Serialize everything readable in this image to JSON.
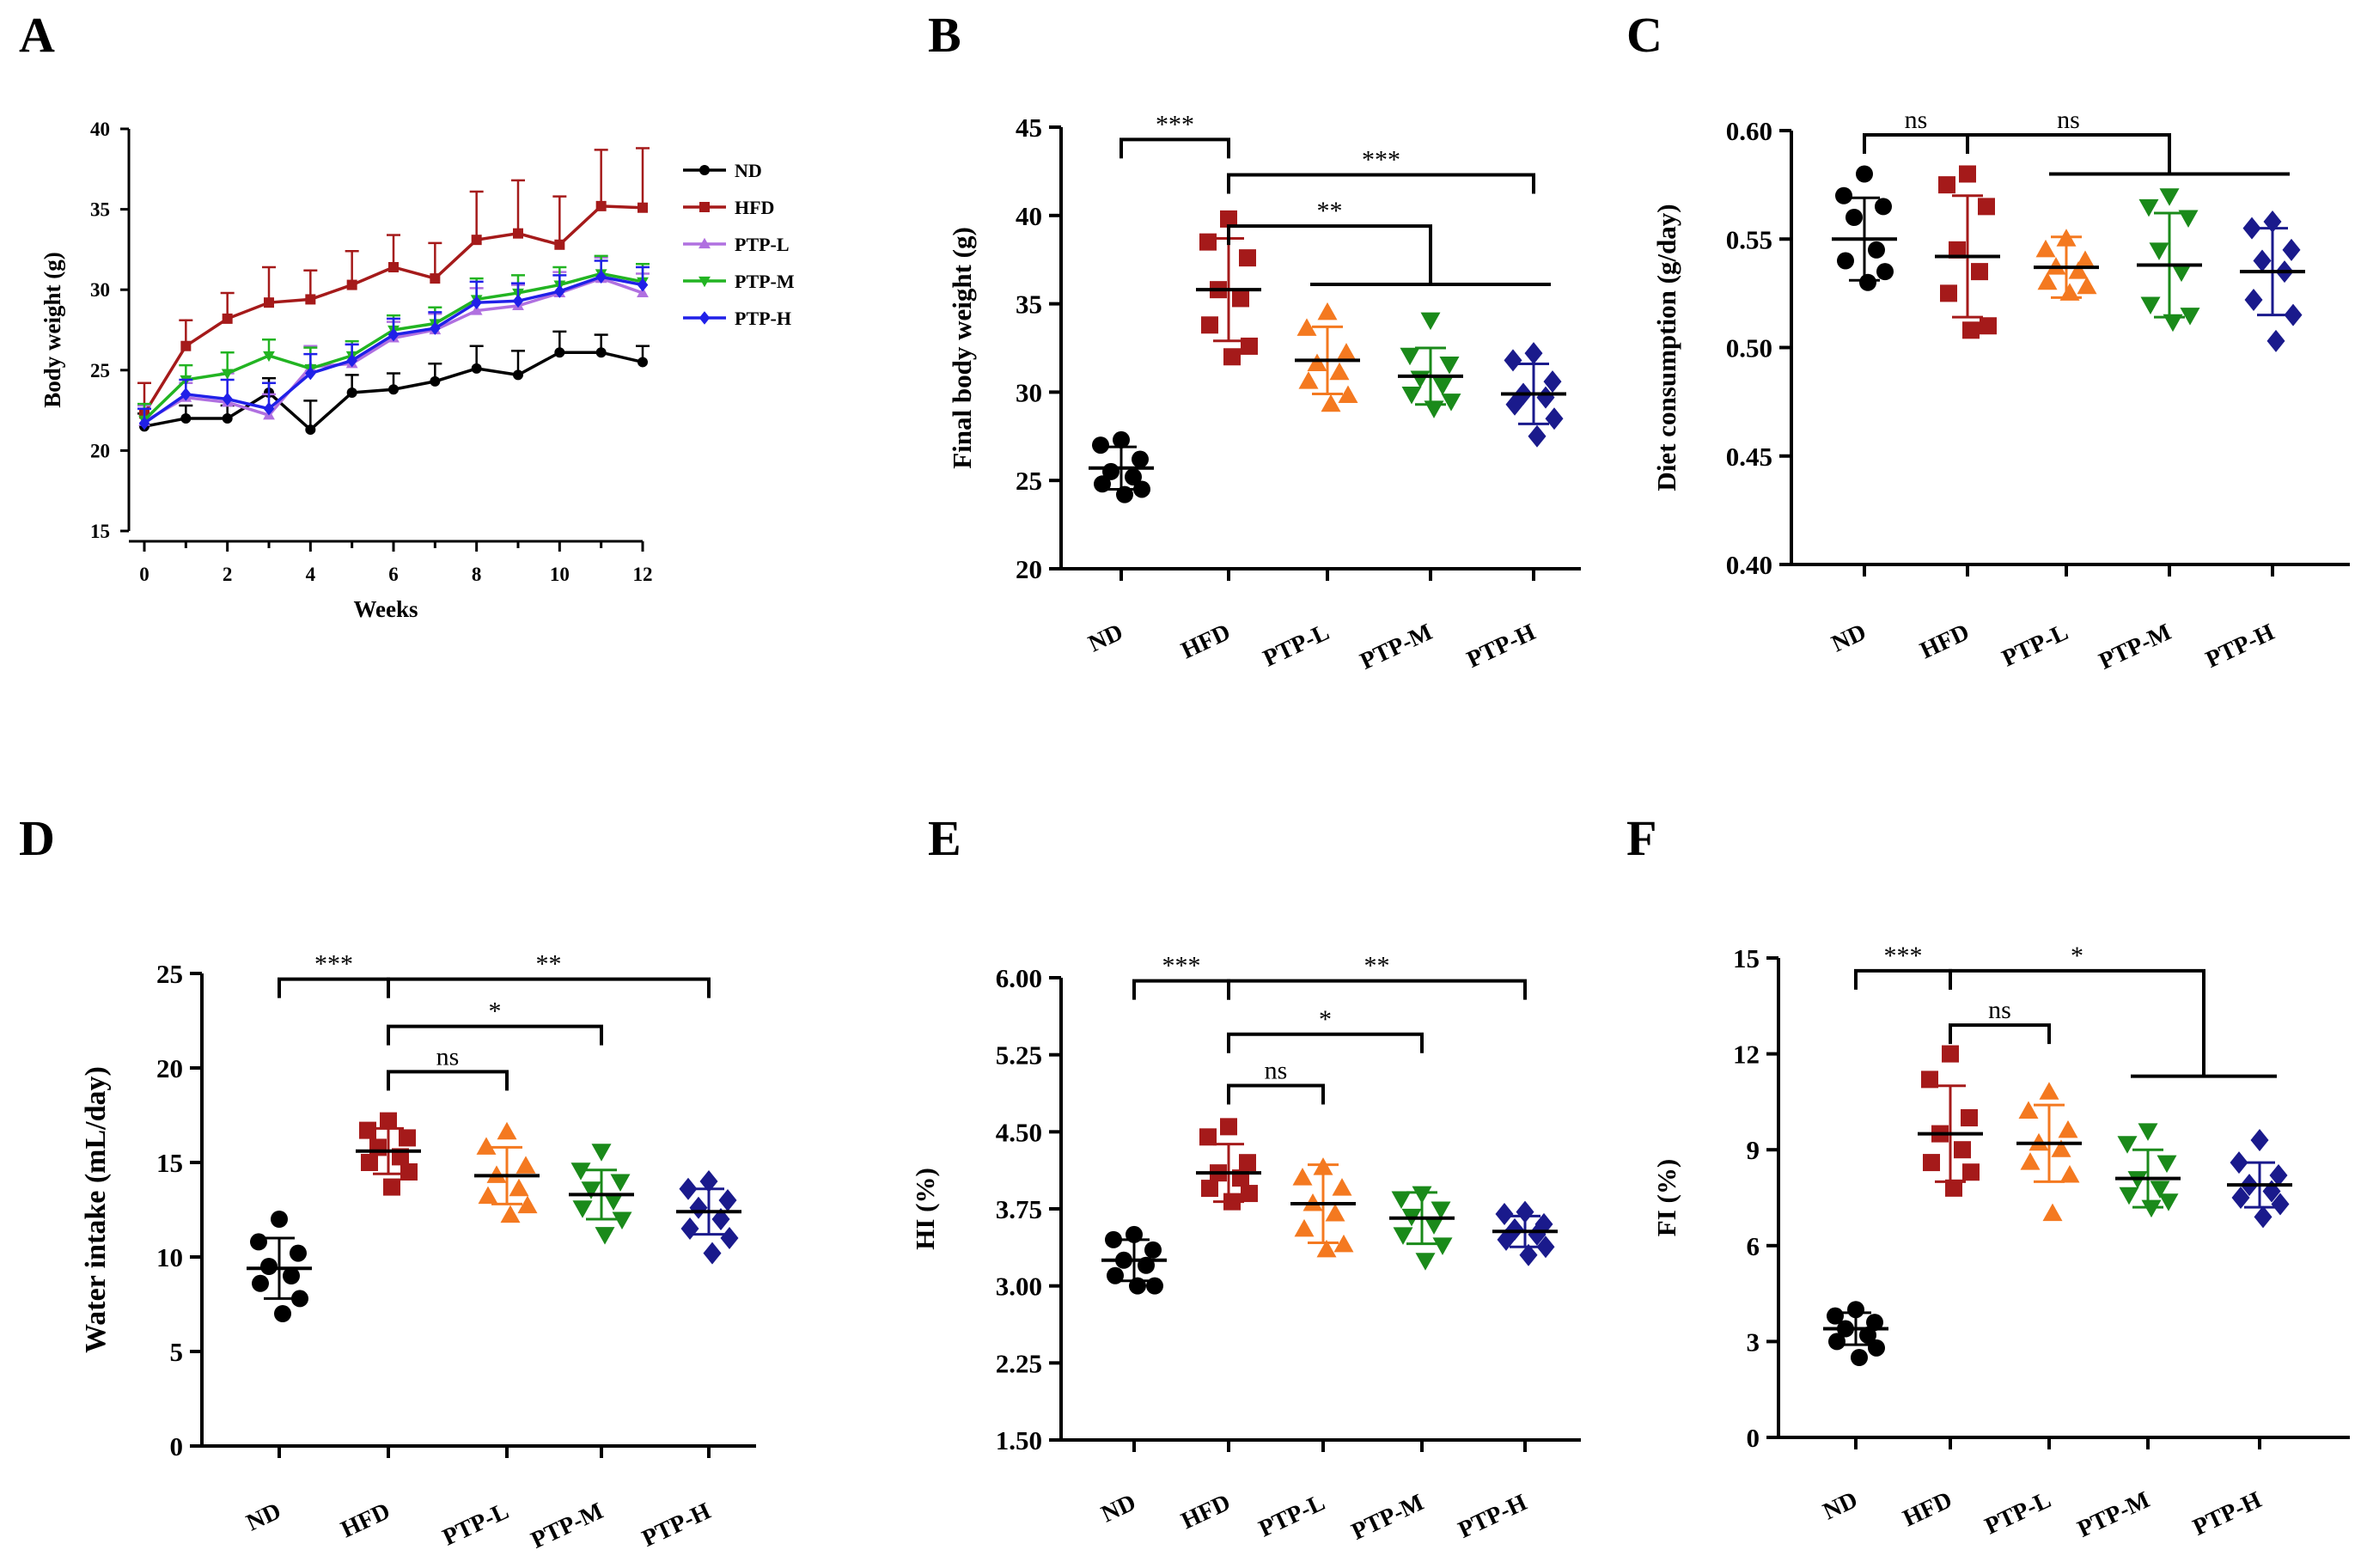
{
  "figure": {
    "colors": {
      "ND": "#000000",
      "HFD": "#A51A1A",
      "PTP-L": "#F47920",
      "PTP-M": "#1A8A1A",
      "PTP-H": "#1A1A8C",
      "PTP-L-line": "#B070E0",
      "PTP-M-line": "#22B422",
      "PTP-H-line": "#2020E8"
    }
  },
  "chart_data": [
    {
      "panel": "A",
      "type": "line",
      "xlabel": "Weeks",
      "ylabel": "Body weight (g)",
      "xlim": [
        0,
        12
      ],
      "ylim": [
        15,
        40
      ],
      "xticks": [
        "0",
        "2",
        "4",
        "6",
        "8",
        "10",
        "12"
      ],
      "yticks": [
        "15",
        "20",
        "25",
        "30",
        "35",
        "40"
      ],
      "x": [
        0,
        1,
        2,
        3,
        4,
        5,
        6,
        7,
        8,
        9,
        10,
        11,
        12
      ],
      "legend": [
        "ND",
        "HFD",
        "PTP-L",
        "PTP-M",
        "PTP-H"
      ],
      "series": [
        {
          "name": "ND",
          "values": [
            21.5,
            22.0,
            22.0,
            23.6,
            21.3,
            23.6,
            23.8,
            24.3,
            25.1,
            24.7,
            26.1,
            26.1,
            25.5
          ],
          "err": [
            0.8,
            0.8,
            0.8,
            0.9,
            1.8,
            1.1,
            1.0,
            1.1,
            1.4,
            1.5,
            1.3,
            1.1,
            1.0
          ]
        },
        {
          "name": "HFD",
          "values": [
            22.3,
            26.5,
            28.2,
            29.2,
            29.4,
            30.3,
            31.4,
            30.7,
            33.1,
            33.5,
            32.8,
            35.2,
            35.1
          ],
          "err": [
            1.9,
            1.6,
            1.6,
            2.2,
            1.8,
            2.1,
            2.0,
            2.2,
            3.0,
            3.3,
            3.0,
            3.5,
            3.7
          ]
        },
        {
          "name": "PTP-L",
          "values": [
            21.8,
            23.3,
            23.0,
            22.2,
            25.2,
            25.4,
            27.0,
            27.5,
            28.7,
            29.0,
            29.8,
            30.7,
            29.8
          ],
          "err": [
            1.0,
            0.9,
            1.8,
            1.3,
            1.3,
            1.2,
            1.0,
            1.0,
            1.4,
            1.3,
            1.3,
            1.3,
            1.2
          ]
        },
        {
          "name": "PTP-M",
          "values": [
            21.9,
            24.4,
            24.8,
            25.9,
            25.1,
            25.9,
            27.5,
            27.9,
            29.4,
            29.8,
            30.3,
            31.0,
            30.5
          ],
          "err": [
            1.0,
            0.9,
            1.3,
            1.0,
            1.3,
            0.9,
            0.9,
            1.0,
            1.3,
            1.1,
            1.1,
            1.1,
            1.1
          ]
        },
        {
          "name": "PTP-H",
          "values": [
            21.7,
            23.5,
            23.2,
            22.6,
            24.8,
            25.6,
            27.2,
            27.6,
            29.2,
            29.3,
            29.9,
            30.8,
            30.3
          ],
          "err": [
            0.9,
            0.9,
            1.2,
            1.6,
            1.2,
            1.0,
            1.0,
            1.0,
            1.3,
            1.1,
            1.0,
            1.0,
            1.1
          ]
        }
      ]
    },
    {
      "panel": "B",
      "type": "scatter",
      "ylabel": "Final body weight (g)",
      "ylim": [
        20,
        45
      ],
      "yticks": [
        "20",
        "25",
        "30",
        "35",
        "40",
        "45"
      ],
      "categories": [
        "ND",
        "HFD",
        "PTP-L",
        "PTP-M",
        "PTP-H"
      ],
      "groups": [
        {
          "name": "ND",
          "mean": 25.7,
          "sd": 1.2,
          "points": [
            27.3,
            27.0,
            26.2,
            25.5,
            25.2,
            24.8,
            24.5,
            24.2
          ]
        },
        {
          "name": "HFD",
          "mean": 35.8,
          "sd": 2.9,
          "points": [
            39.8,
            38.5,
            37.6,
            35.8,
            35.3,
            33.8,
            32.6,
            32.0
          ]
        },
        {
          "name": "PTP-L",
          "mean": 31.8,
          "sd": 1.9,
          "points": [
            34.5,
            33.6,
            32.2,
            31.6,
            31.1,
            30.6,
            29.8,
            29.3
          ]
        },
        {
          "name": "PTP-M",
          "mean": 30.9,
          "sd": 1.6,
          "points": [
            34.1,
            32.1,
            31.6,
            30.8,
            30.4,
            29.9,
            29.5,
            29.1
          ]
        },
        {
          "name": "PTP-H",
          "mean": 29.9,
          "sd": 1.7,
          "points": [
            32.2,
            31.8,
            30.6,
            29.9,
            29.7,
            29.3,
            28.5,
            27.5
          ]
        }
      ],
      "brackets": [
        {
          "label": "***",
          "from": "ND",
          "to": "HFD",
          "kind": "simple",
          "level": 44.3
        },
        {
          "label": "***",
          "from": "HFD",
          "to": "PTP-H",
          "kind": "simple",
          "level": 42.3
        },
        {
          "label": "**",
          "from": "HFD",
          "group": [
            "PTP-L",
            "PTP-M",
            "PTP-H"
          ],
          "kind": "tgroup",
          "level": 39.4,
          "sublevel": 36.1
        }
      ]
    },
    {
      "panel": "C",
      "type": "scatter",
      "ylabel": "Diet consumption (g/day)",
      "ylim": [
        0.4,
        0.6
      ],
      "yticks": [
        "0.40",
        "0.45",
        "0.50",
        "0.55",
        "0.60"
      ],
      "categories": [
        "ND",
        "HFD",
        "PTP-L",
        "PTP-M",
        "PTP-H"
      ],
      "groups": [
        {
          "name": "ND",
          "mean": 0.55,
          "sd": 0.019,
          "points": [
            0.58,
            0.57,
            0.565,
            0.56,
            0.545,
            0.54,
            0.535,
            0.53
          ]
        },
        {
          "name": "HFD",
          "mean": 0.542,
          "sd": 0.028,
          "points": [
            0.58,
            0.575,
            0.565,
            0.545,
            0.535,
            0.525,
            0.51,
            0.508
          ]
        },
        {
          "name": "PTP-L",
          "mean": 0.537,
          "sd": 0.014,
          "points": [
            0.55,
            0.545,
            0.54,
            0.537,
            0.535,
            0.53,
            0.528,
            0.525
          ]
        },
        {
          "name": "PTP-M",
          "mean": 0.538,
          "sd": 0.024,
          "points": [
            0.57,
            0.565,
            0.56,
            0.545,
            0.535,
            0.52,
            0.515,
            0.512
          ]
        },
        {
          "name": "PTP-H",
          "mean": 0.535,
          "sd": 0.02,
          "points": [
            0.558,
            0.555,
            0.545,
            0.54,
            0.535,
            0.522,
            0.515,
            0.503
          ]
        }
      ],
      "brackets": [
        {
          "label": "ns",
          "from": "ND",
          "to": "HFD",
          "kind": "simple",
          "level": 0.598
        },
        {
          "label": "ns",
          "from": "HFD",
          "group": [
            "PTP-L",
            "PTP-M",
            "PTP-H"
          ],
          "kind": "tgroup",
          "level": 0.598,
          "sublevel": 0.58
        }
      ]
    },
    {
      "panel": "D",
      "type": "scatter",
      "ylabel": "Water intake (mL/day)",
      "ylim": [
        0,
        25
      ],
      "yticks": [
        "0",
        "5",
        "10",
        "15",
        "20",
        "25"
      ],
      "categories": [
        "ND",
        "HFD",
        "PTP-L",
        "PTP-M",
        "PTP-H"
      ],
      "groups": [
        {
          "name": "ND",
          "mean": 9.4,
          "sd": 1.6,
          "points": [
            12.0,
            10.8,
            10.2,
            9.5,
            9.0,
            8.6,
            7.8,
            7.0
          ]
        },
        {
          "name": "HFD",
          "mean": 15.6,
          "sd": 1.2,
          "points": [
            17.2,
            16.7,
            16.3,
            15.8,
            15.3,
            15.0,
            14.5,
            13.7
          ]
        },
        {
          "name": "PTP-L",
          "mean": 14.3,
          "sd": 1.5,
          "points": [
            16.6,
            15.8,
            14.8,
            14.3,
            13.6,
            13.2,
            12.7,
            12.2
          ]
        },
        {
          "name": "PTP-M",
          "mean": 13.3,
          "sd": 1.3,
          "points": [
            15.6,
            14.6,
            14.0,
            13.6,
            13.0,
            12.6,
            12.0,
            11.2
          ]
        },
        {
          "name": "PTP-H",
          "mean": 12.4,
          "sd": 1.2,
          "points": [
            14.0,
            13.6,
            13.0,
            12.6,
            12.0,
            11.5,
            11.0,
            10.2
          ]
        }
      ],
      "brackets": [
        {
          "label": "***",
          "from": "ND",
          "to": "HFD",
          "kind": "simple",
          "level": 24.7
        },
        {
          "label": "**",
          "from": "HFD",
          "to": "PTP-H",
          "kind": "simple",
          "level": 24.7
        },
        {
          "label": "*",
          "from": "HFD",
          "to": "PTP-M",
          "kind": "simple",
          "level": 22.2
        },
        {
          "label": "ns",
          "from": "HFD",
          "to": "PTP-L",
          "kind": "simple",
          "level": 19.8
        }
      ]
    },
    {
      "panel": "E",
      "type": "scatter",
      "ylabel": "HI (%)",
      "ylim": [
        1.5,
        6.0
      ],
      "yticks": [
        "1.50",
        "2.25",
        "3.00",
        "3.75",
        "4.50",
        "5.25",
        "6.00"
      ],
      "categories": [
        "ND",
        "HFD",
        "PTP-L",
        "PTP-M",
        "PTP-H"
      ],
      "groups": [
        {
          "name": "ND",
          "mean": 3.25,
          "sd": 0.2,
          "points": [
            3.5,
            3.45,
            3.35,
            3.25,
            3.2,
            3.1,
            3.0,
            3.0
          ]
        },
        {
          "name": "HFD",
          "mean": 4.1,
          "sd": 0.28,
          "points": [
            4.55,
            4.45,
            4.2,
            4.1,
            4.05,
            3.95,
            3.9,
            3.82
          ]
        },
        {
          "name": "PTP-L",
          "mean": 3.8,
          "sd": 0.38,
          "points": [
            4.15,
            4.05,
            3.95,
            3.8,
            3.7,
            3.55,
            3.4,
            3.35
          ]
        },
        {
          "name": "PTP-M",
          "mean": 3.66,
          "sd": 0.25,
          "points": [
            3.9,
            3.85,
            3.75,
            3.68,
            3.6,
            3.5,
            3.4,
            3.25
          ]
        },
        {
          "name": "PTP-H",
          "mean": 3.53,
          "sd": 0.15,
          "points": [
            3.72,
            3.7,
            3.6,
            3.55,
            3.5,
            3.45,
            3.38,
            3.3
          ]
        }
      ],
      "brackets": [
        {
          "label": "***",
          "from": "ND",
          "to": "HFD",
          "kind": "simple",
          "level": 5.97
        },
        {
          "label": "**",
          "from": "HFD",
          "to": "PTP-H",
          "kind": "simple",
          "level": 5.97
        },
        {
          "label": "*",
          "from": "HFD",
          "to": "PTP-M",
          "kind": "simple",
          "level": 5.45
        },
        {
          "label": "ns",
          "from": "HFD",
          "to": "PTP-L",
          "kind": "simple",
          "level": 4.95
        }
      ]
    },
    {
      "panel": "F",
      "type": "scatter",
      "ylabel": "FI (%)",
      "ylim": [
        0,
        15
      ],
      "yticks": [
        "0",
        "3",
        "6",
        "9",
        "12",
        "15"
      ],
      "categories": [
        "ND",
        "HFD",
        "PTP-L",
        "PTP-M",
        "PTP-H"
      ],
      "groups": [
        {
          "name": "ND",
          "mean": 3.4,
          "sd": 0.5,
          "points": [
            4.0,
            3.8,
            3.6,
            3.4,
            3.2,
            3.0,
            2.8,
            2.5
          ]
        },
        {
          "name": "HFD",
          "mean": 9.5,
          "sd": 1.5,
          "points": [
            12.0,
            11.2,
            10.0,
            9.5,
            9.0,
            8.6,
            8.3,
            7.8
          ]
        },
        {
          "name": "PTP-L",
          "mean": 9.2,
          "sd": 1.2,
          "points": [
            10.8,
            10.2,
            9.6,
            9.2,
            9.0,
            8.6,
            8.2,
            7.0
          ]
        },
        {
          "name": "PTP-M",
          "mean": 8.1,
          "sd": 0.9,
          "points": [
            9.6,
            9.2,
            8.6,
            8.1,
            7.8,
            7.6,
            7.4,
            7.2
          ]
        },
        {
          "name": "PTP-H",
          "mean": 7.9,
          "sd": 0.7,
          "points": [
            9.3,
            8.6,
            8.2,
            7.9,
            7.7,
            7.5,
            7.3,
            6.9
          ]
        }
      ],
      "brackets": [
        {
          "label": "***",
          "from": "ND",
          "to": "HFD",
          "kind": "simple",
          "level": 14.6
        },
        {
          "label": "ns",
          "from": "HFD",
          "to": "PTP-L",
          "kind": "simple",
          "level": 12.9
        },
        {
          "label": "*",
          "from": "HFD",
          "group": [
            "PTP-M",
            "PTP-H"
          ],
          "kind": "tgroup",
          "level": 14.6,
          "sublevel": 11.3
        }
      ]
    }
  ]
}
